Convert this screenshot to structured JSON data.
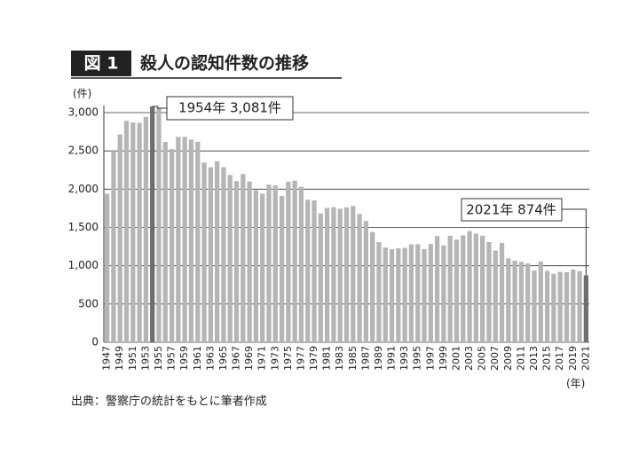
{
  "chart_data": {
    "type": "bar",
    "badge": "図 1",
    "title": "殺人の認知件数の推移",
    "y_unit": "(件)",
    "x_unit": "(年)",
    "source": "出典：警察庁の統計をもとに筆者作成",
    "categories": [
      "1947",
      null,
      "1949",
      null,
      "1951",
      null,
      "1953",
      null,
      "1955",
      null,
      "1957",
      null,
      "1959",
      null,
      "1961",
      null,
      "1963",
      null,
      "1965",
      null,
      "1967",
      null,
      "1969",
      null,
      "1971",
      null,
      "1973",
      null,
      "1975",
      null,
      "1977",
      null,
      "1979",
      null,
      "1981",
      null,
      "1983",
      null,
      "1985",
      null,
      "1987",
      null,
      "1989",
      null,
      "1991",
      null,
      "1993",
      null,
      "1995",
      null,
      "1997",
      null,
      "1999",
      null,
      "2001",
      null,
      "2003",
      null,
      "2005",
      null,
      "2007",
      null,
      "2009",
      null,
      "2011",
      null,
      "2013",
      null,
      "2015",
      null,
      "2017",
      null,
      "2019",
      null,
      "2021"
    ],
    "values": [
      1940,
      2500,
      2716,
      2892,
      2871,
      2866,
      2944,
      3081,
      3066,
      2617,
      2526,
      2683,
      2683,
      2648,
      2619,
      2348,
      2286,
      2366,
      2288,
      2186,
      2106,
      2197,
      2099,
      1986,
      1941,
      2060,
      2048,
      1912,
      2098,
      2111,
      2031,
      1862,
      1853,
      1684,
      1754,
      1764,
      1745,
      1762,
      1780,
      1676,
      1584,
      1441,
      1308,
      1238,
      1215,
      1227,
      1233,
      1279,
      1281,
      1218,
      1284,
      1388,
      1265,
      1391,
      1340,
      1396,
      1452,
      1419,
      1392,
      1309,
      1199,
      1297,
      1097,
      1067,
      1051,
      1030,
      938,
      1054,
      933,
      895,
      920,
      915,
      950,
      929,
      874
    ],
    "color": "#b5b5b5",
    "highlight_color": "#6e6e6e",
    "annotations": [
      {
        "text": "1954年 3,081件",
        "index": 7
      },
      {
        "text": "2021年 874件",
        "index": 74
      }
    ],
    "ylim": [
      0,
      3000
    ],
    "yticks": [
      0,
      500,
      {
        "value": 1000,
        "label": "1,000"
      },
      {
        "value": 1500,
        "label": "1,500"
      },
      {
        "value": 2000,
        "label": "2,000"
      },
      {
        "value": 2500,
        "label": "2,500"
      },
      {
        "value": 3000,
        "label": "3,000"
      }
    ],
    "grid": true
  }
}
